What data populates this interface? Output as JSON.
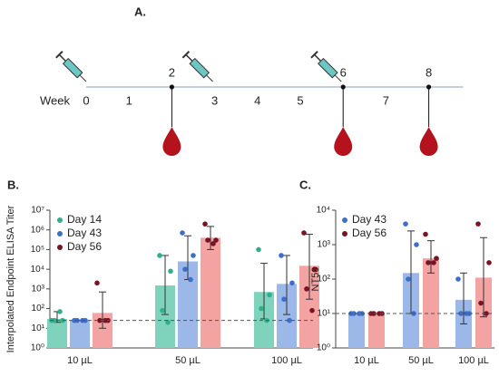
{
  "timeline": {
    "panel_label": "A.",
    "axis_label": "Week",
    "weeks": [
      0,
      1,
      2,
      3,
      4,
      5,
      6,
      7,
      8
    ],
    "injections": [
      0,
      3,
      6
    ],
    "bleeds": [
      2,
      6,
      8
    ]
  },
  "chart_data": [
    {
      "type": "bar",
      "panel_label": "B.",
      "ylabel": "Interpolated Endpoint ELISA Titer",
      "log_scale": true,
      "ylim": [
        1,
        10000000
      ],
      "yticks": [
        {
          "value": 1,
          "label": "10⁰"
        },
        {
          "value": 10,
          "label": "10¹"
        },
        {
          "value": 100,
          "label": "10²"
        },
        {
          "value": 1000,
          "label": "10³"
        },
        {
          "value": 10000,
          "label": "10⁴"
        },
        {
          "value": 100000,
          "label": "10⁵"
        },
        {
          "value": 1000000,
          "label": "10⁶"
        },
        {
          "value": 10000000,
          "label": "10⁷"
        }
      ],
      "threshold": 25,
      "legend": "upper left",
      "categories": [
        "10 µL",
        "50 µL",
        "100 µL"
      ],
      "series": [
        {
          "name": "Day 14",
          "color": "#7fd3bd",
          "point_color": "#2fb08d",
          "values": [
            30,
            1500,
            700
          ],
          "ci_low": [
            20,
            50,
            30
          ],
          "ci_high": [
            70,
            50000,
            20000
          ],
          "points": [
            [
              25,
              25,
              25,
              70
            ],
            [
              50000,
              8000,
              80,
              20
            ],
            [
              100000,
              500,
              100,
              25
            ]
          ]
        },
        {
          "name": "Day 43",
          "color": "#9bb8e8",
          "point_color": "#3d6fc8",
          "values": [
            25,
            25000,
            1800
          ],
          "ci_low": [
            25,
            3000,
            50
          ],
          "ci_high": [
            25,
            500000,
            50000
          ],
          "points": [
            [
              25,
              25,
              25,
              25
            ],
            [
              700000,
              50000,
              10000,
              3000
            ],
            [
              50000,
              2000,
              300,
              25
            ]
          ]
        },
        {
          "name": "Day 56",
          "color": "#f4a3a3",
          "point_color": "#7a1424",
          "values": [
            60,
            400000,
            15000
          ],
          "ci_low": [
            10,
            100000,
            300
          ],
          "ci_high": [
            700,
            1500000,
            600000
          ],
          "points": [
            [
              2000,
              25,
              25,
              25
            ],
            [
              2000000,
              300000,
              300000,
              200000
            ],
            [
              700000,
              10000,
              1000,
              80
            ]
          ]
        }
      ]
    },
    {
      "type": "bar",
      "panel_label": "C.",
      "ylabel": "NT50",
      "log_scale": true,
      "ylim": [
        1,
        10000
      ],
      "yticks": [
        {
          "value": 1,
          "label": "10⁰"
        },
        {
          "value": 10,
          "label": "10¹"
        },
        {
          "value": 100,
          "label": "10²"
        },
        {
          "value": 1000,
          "label": "10³"
        },
        {
          "value": 10000,
          "label": "10⁴"
        }
      ],
      "threshold": 10,
      "legend": "upper left",
      "categories": [
        "10 µL",
        "50 µL",
        "100 µL"
      ],
      "series": [
        {
          "name": "Day 43",
          "color": "#9bb8e8",
          "point_color": "#3d6fc8",
          "values": [
            10,
            150,
            25
          ],
          "ci_low": [
            10,
            10,
            5
          ],
          "ci_high": [
            10,
            2500,
            150
          ],
          "points": [
            [
              10,
              10,
              10,
              10
            ],
            [
              4000,
              1000,
              100,
              10
            ],
            [
              100,
              10,
              10,
              10
            ]
          ]
        },
        {
          "name": "Day 56",
          "color": "#f4a3a3",
          "point_color": "#7a1424",
          "values": [
            10,
            400,
            110
          ],
          "ci_low": [
            10,
            150,
            8
          ],
          "ci_high": [
            10,
            1300,
            1600
          ],
          "points": [
            [
              10,
              10,
              10,
              10
            ],
            [
              2000,
              400,
              300,
              300
            ],
            [
              4000,
              300,
              20,
              10
            ]
          ]
        }
      ]
    }
  ]
}
